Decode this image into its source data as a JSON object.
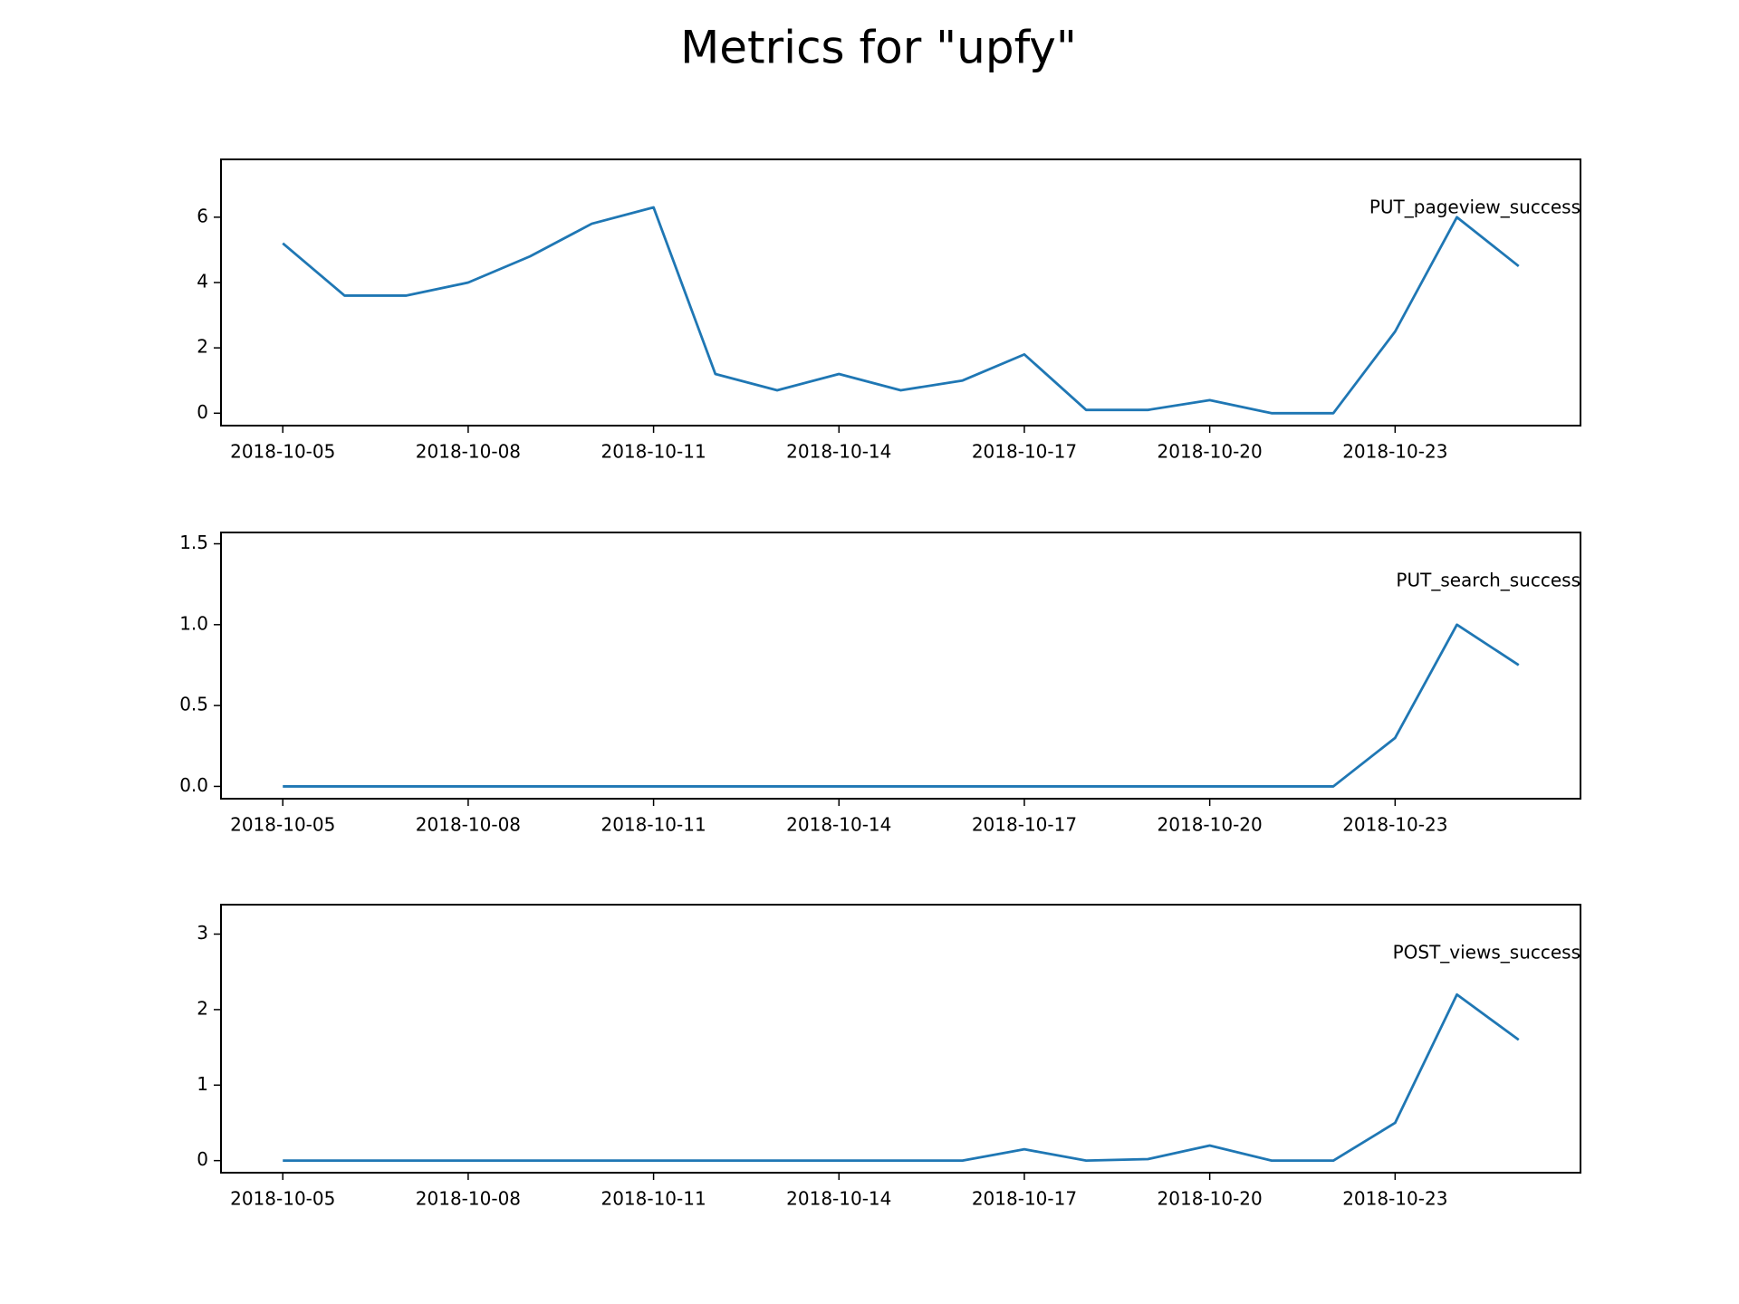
{
  "title": "Metrics for \"upfy\"",
  "chart_data": [
    {
      "type": "line",
      "x": [
        "2018-10-05",
        "2018-10-06",
        "2018-10-07",
        "2018-10-08",
        "2018-10-09",
        "2018-10-10",
        "2018-10-11",
        "2018-10-12",
        "2018-10-13",
        "2018-10-14",
        "2018-10-15",
        "2018-10-16",
        "2018-10-17",
        "2018-10-18",
        "2018-10-19",
        "2018-10-20",
        "2018-10-21",
        "2018-10-22",
        "2018-10-23",
        "2018-10-24",
        "2018-10-25"
      ],
      "series": [
        {
          "name": "PUT_pageview_success",
          "color": "#1f77b4",
          "values": [
            5.2,
            3.6,
            3.6,
            4.0,
            4.8,
            5.8,
            6.3,
            1.2,
            0.7,
            1.2,
            0.7,
            1.0,
            1.8,
            0.1,
            0.1,
            0.4,
            0,
            0,
            2.5,
            6.0,
            4.5
          ]
        }
      ],
      "xlim": [
        "2018-10-04",
        "2018-10-26"
      ],
      "xticks": [
        "2018-10-05",
        "2018-10-08",
        "2018-10-11",
        "2018-10-14",
        "2018-10-17",
        "2018-10-20",
        "2018-10-23"
      ],
      "ylim": [
        -0.38,
        7.77
      ],
      "yticks": [
        0,
        2,
        4,
        6
      ]
    },
    {
      "type": "line",
      "x": [
        "2018-10-05",
        "2018-10-06",
        "2018-10-07",
        "2018-10-08",
        "2018-10-09",
        "2018-10-10",
        "2018-10-11",
        "2018-10-12",
        "2018-10-13",
        "2018-10-14",
        "2018-10-15",
        "2018-10-16",
        "2018-10-17",
        "2018-10-18",
        "2018-10-19",
        "2018-10-20",
        "2018-10-21",
        "2018-10-22",
        "2018-10-23",
        "2018-10-24",
        "2018-10-25"
      ],
      "series": [
        {
          "name": "PUT_search_success",
          "color": "#1f77b4",
          "values": [
            0,
            0,
            0,
            0,
            0,
            0,
            0,
            0,
            0,
            0,
            0,
            0,
            0,
            0,
            0,
            0,
            0,
            0,
            0.3,
            1.0,
            0.75
          ]
        }
      ],
      "xlim": [
        "2018-10-04",
        "2018-10-26"
      ],
      "xticks": [
        "2018-10-05",
        "2018-10-08",
        "2018-10-11",
        "2018-10-14",
        "2018-10-17",
        "2018-10-20",
        "2018-10-23"
      ],
      "ylim": [
        -0.076,
        1.57
      ],
      "yticks": [
        {
          "value": 0,
          "label": "0.0"
        },
        {
          "value": 0.5,
          "label": "0.5"
        },
        {
          "value": 1,
          "label": "1.0"
        },
        {
          "value": 1.5,
          "label": "1.5"
        }
      ]
    },
    {
      "type": "line",
      "x": [
        "2018-10-05",
        "2018-10-06",
        "2018-10-07",
        "2018-10-08",
        "2018-10-09",
        "2018-10-10",
        "2018-10-11",
        "2018-10-12",
        "2018-10-13",
        "2018-10-14",
        "2018-10-15",
        "2018-10-16",
        "2018-10-17",
        "2018-10-18",
        "2018-10-19",
        "2018-10-20",
        "2018-10-21",
        "2018-10-22",
        "2018-10-23",
        "2018-10-24",
        "2018-10-25"
      ],
      "series": [
        {
          "name": "POST_views_success",
          "color": "#1f77b4",
          "values": [
            0,
            0,
            0,
            0,
            0,
            0,
            0,
            0,
            0,
            0,
            0,
            0,
            0.15,
            0,
            0.02,
            0.2,
            0,
            0,
            0.5,
            2.2,
            1.6
          ]
        }
      ],
      "xlim": [
        "2018-10-04",
        "2018-10-26"
      ],
      "xticks": [
        "2018-10-05",
        "2018-10-08",
        "2018-10-11",
        "2018-10-14",
        "2018-10-17",
        "2018-10-20",
        "2018-10-23"
      ],
      "ylim": [
        -0.16,
        3.39
      ],
      "yticks": [
        0,
        1,
        2,
        3
      ]
    }
  ]
}
